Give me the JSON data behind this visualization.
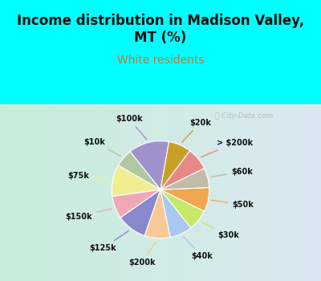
{
  "title": "Income distribution in Madison Valley,\nMT (%)",
  "subtitle": "White residents",
  "labels": [
    "$100k",
    "$10k",
    "$75k",
    "$150k",
    "$125k",
    "$200k",
    "$40k",
    "$30k",
    "$50k",
    "$60k",
    "> $200k",
    "$20k"
  ],
  "sizes": [
    13.5,
    6.0,
    10.5,
    7.5,
    10.0,
    8.5,
    7.5,
    7.0,
    8.0,
    6.5,
    7.5,
    7.5
  ],
  "colors": [
    "#a090cc",
    "#b0c8a0",
    "#f0ee90",
    "#f0a8b8",
    "#8888cc",
    "#f8c898",
    "#a8c8f0",
    "#c8e868",
    "#f0a850",
    "#c0bca8",
    "#e88888",
    "#c8a028"
  ],
  "bg_top_color": "#00ffff",
  "title_color": "#111111",
  "subtitle_color": "#c87832",
  "watermark": "City-Data.com",
  "startangle": 80,
  "title_fontsize": 12,
  "subtitle_fontsize": 10,
  "label_fontsize": 7
}
